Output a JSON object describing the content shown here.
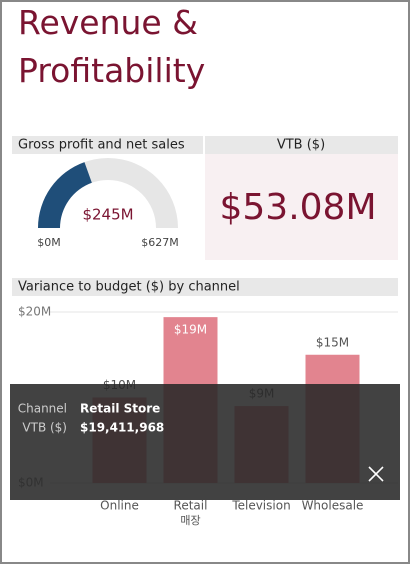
{
  "header": {
    "title": "Revenue & Profitability"
  },
  "gauge": {
    "title": "Gross profit and net sales",
    "value": 245,
    "value_label": "$245M",
    "min": {
      "value": 0,
      "label": "$0M"
    },
    "max": {
      "value": 627,
      "label": "$627M"
    },
    "color": "#1f4e79"
  },
  "card": {
    "title": "VTB ($)",
    "value": "$53.08M"
  },
  "chart_data": {
    "type": "bar",
    "title": "Variance to budget ($) by channel",
    "categories": [
      "Online",
      "Retail",
      "Television",
      "Wholesale"
    ],
    "values": [
      10,
      19.4,
      9,
      15
    ],
    "value_labels": [
      "$10M",
      "$19M",
      "$9M",
      "$15M"
    ],
    "color": "#e2848f",
    "ylim": [
      0,
      20
    ],
    "yticks": [
      {
        "value": 0,
        "label": "$0M"
      },
      {
        "value": 20,
        "label": "$20M"
      }
    ],
    "annotations": [
      {
        "category": 1,
        "text": "매장"
      }
    ]
  },
  "tooltip": {
    "rows": [
      [
        "Channel",
        "Retail Store"
      ],
      [
        "VTB ($)",
        "$19,411,968"
      ]
    ]
  }
}
